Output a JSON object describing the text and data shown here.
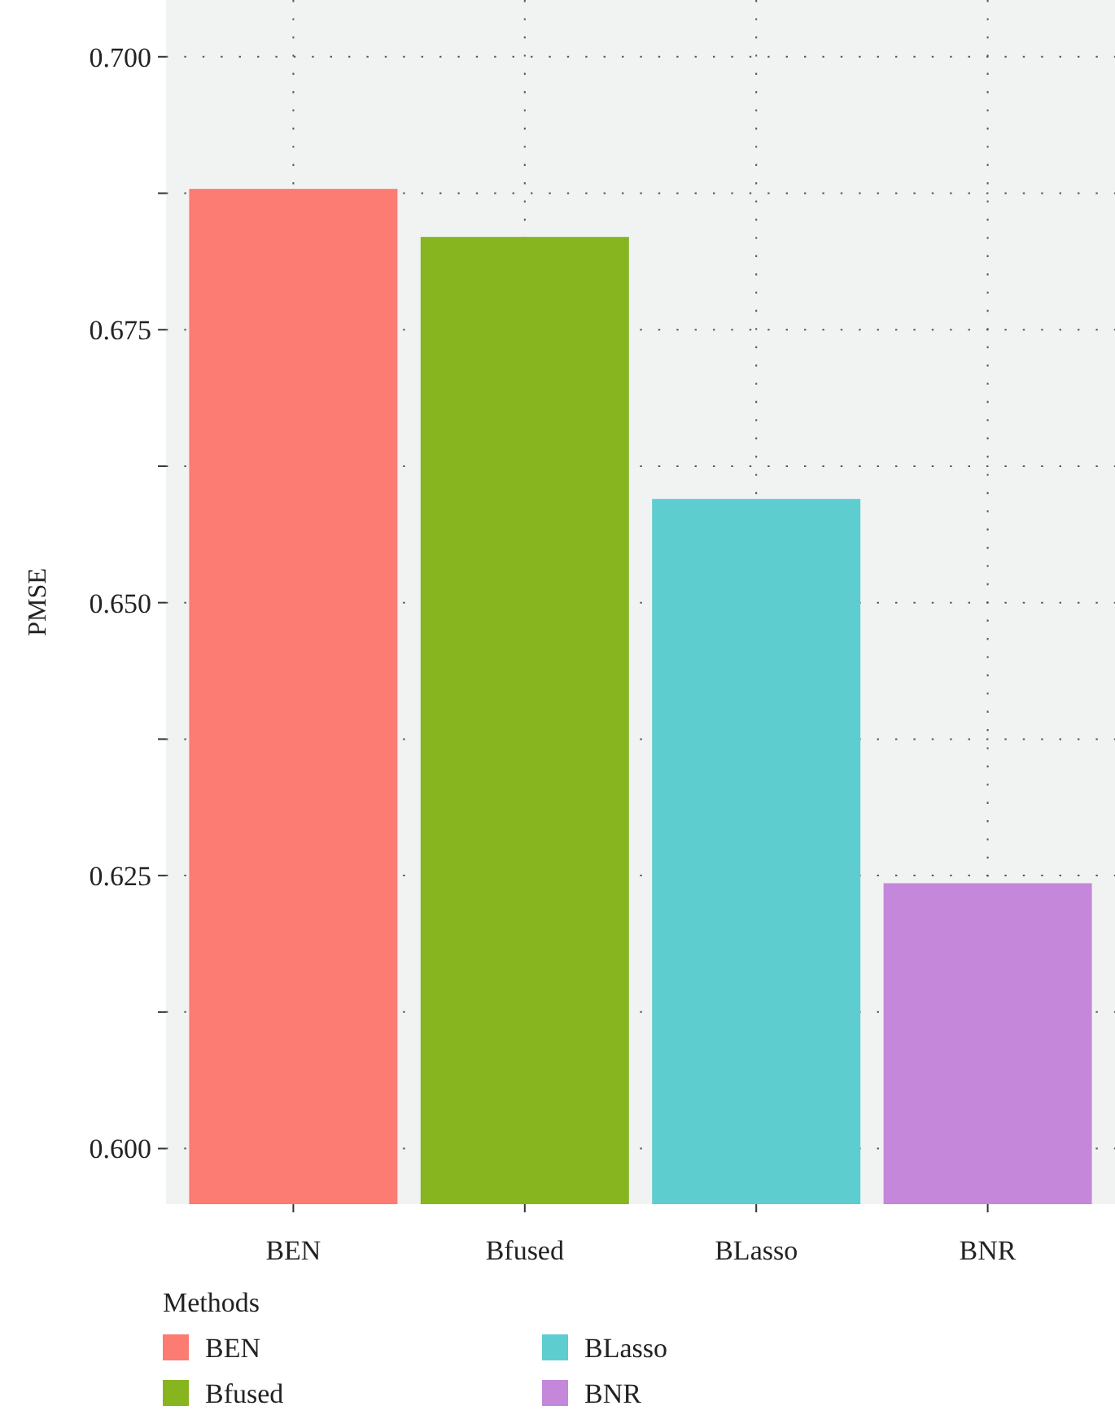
{
  "chart_data": {
    "type": "bar",
    "ylabel": "PMSE",
    "legend_title": "Methods",
    "legend": "bottom",
    "grid": true,
    "categories": [
      "BEN",
      "Bfused",
      "BLasso",
      "BNR"
    ],
    "series": [
      {
        "name": "BEN",
        "color": "#fc7b72",
        "values": [
          0.6879,
          null,
          null,
          null
        ]
      },
      {
        "name": "Bfused",
        "color": "#86b520",
        "values": [
          null,
          0.6835,
          null,
          null
        ]
      },
      {
        "name": "BLasso",
        "color": "#5dcdd0",
        "values": [
          null,
          null,
          0.6595,
          null
        ]
      },
      {
        "name": "BNR",
        "color": "#c487da",
        "values": [
          null,
          null,
          null,
          0.6243
        ]
      }
    ],
    "ylim": [
      0.5949,
      0.7052
    ],
    "yticks": [
      {
        "value": 0.6,
        "label": "0.600"
      },
      {
        "value": 0.6125,
        "label": null
      },
      {
        "value": 0.625,
        "label": "0.625"
      },
      {
        "value": 0.6375,
        "label": null
      },
      {
        "value": 0.65,
        "label": "0.650"
      },
      {
        "value": 0.6625,
        "label": null
      },
      {
        "value": 0.675,
        "label": "0.675"
      },
      {
        "value": 0.6875,
        "label": null
      },
      {
        "value": 0.7,
        "label": "0.700"
      }
    ]
  }
}
